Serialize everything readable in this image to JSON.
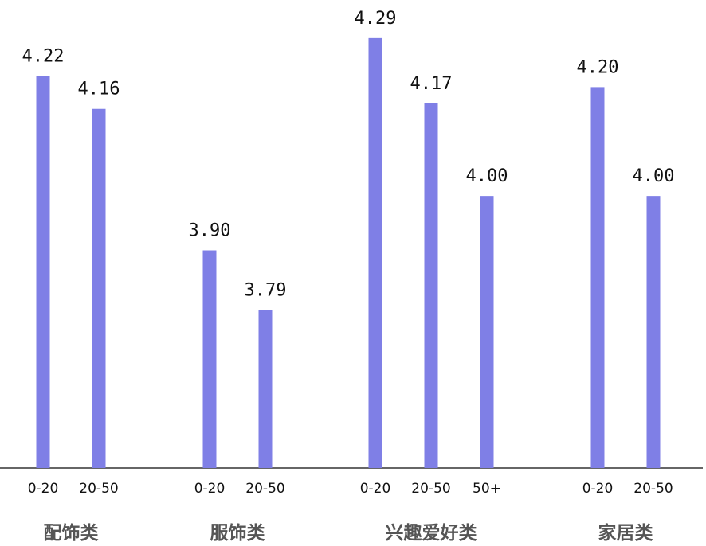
{
  "chart_data": {
    "type": "bar",
    "title": "",
    "xlabel": "",
    "ylabel": "",
    "ylim": [
      3.5,
      4.36
    ],
    "grid": false,
    "bar_color": "#7f7fe6",
    "groups": [
      {
        "label": "配饰类",
        "categories": [
          "0-20",
          "20-50"
        ],
        "values": [
          4.22,
          4.16
        ],
        "labels": [
          "4.22",
          "4.16"
        ]
      },
      {
        "label": "服饰类",
        "categories": [
          "0-20",
          "20-50"
        ],
        "values": [
          3.9,
          3.79
        ],
        "labels": [
          "3.90",
          "3.79"
        ]
      },
      {
        "label": "兴趣爱好类",
        "categories": [
          "0-20",
          "20-50",
          "50+"
        ],
        "values": [
          4.29,
          4.17,
          4.0
        ],
        "labels": [
          "4.29",
          "4.17",
          "4.00"
        ]
      },
      {
        "label": "家居类",
        "categories": [
          "0-20",
          "20-50"
        ],
        "values": [
          4.2,
          4.0
        ],
        "labels": [
          "4.20",
          "4.00"
        ]
      }
    ]
  }
}
